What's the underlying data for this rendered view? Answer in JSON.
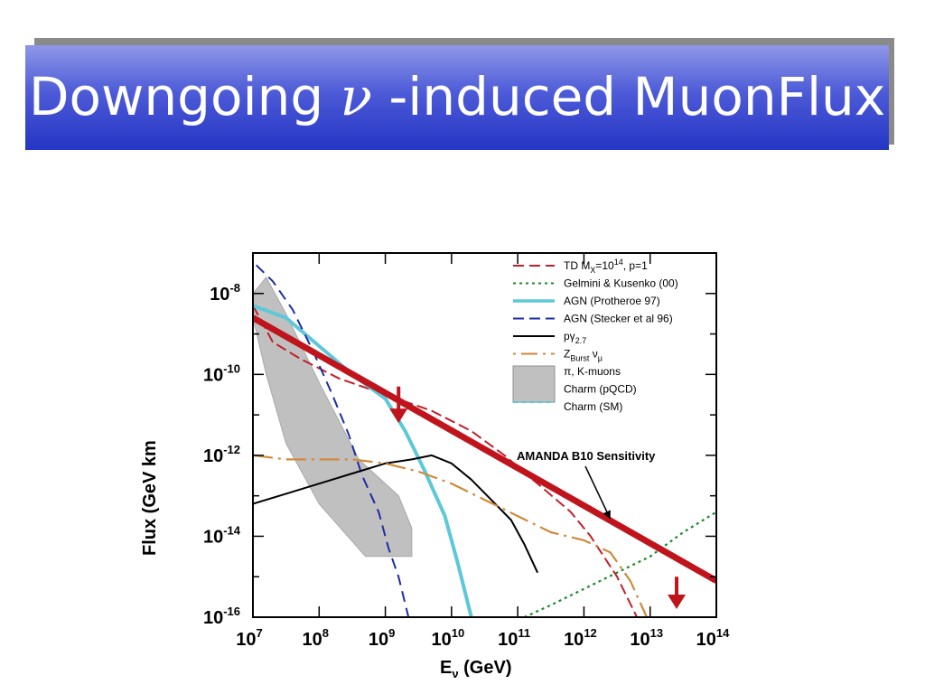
{
  "slide": {
    "title_prefix": "Downgoing ",
    "title_symbol": "ν",
    "title_suffix": " -induced MuonFlux"
  },
  "chart_data": {
    "type": "line",
    "x_scale": "log",
    "y_scale": "log",
    "xlabel_main": "E",
    "xlabel_sub": "ν",
    "xlabel_unit": " (GeV)",
    "ylabel": "Flux (GeV   km",
    "xlim": [
      10000000.0,
      100000000000000.0
    ],
    "ylim": [
      1e-16,
      1e-07
    ],
    "x_ticks": [
      {
        "exp": 7,
        "label_base": "10",
        "label_exp": "7"
      },
      {
        "exp": 8,
        "label_base": "10",
        "label_exp": "8"
      },
      {
        "exp": 9,
        "label_base": "10",
        "label_exp": "9"
      },
      {
        "exp": 10,
        "label_base": "10",
        "label_exp": "10"
      },
      {
        "exp": 11,
        "label_base": "10",
        "label_exp": "11"
      },
      {
        "exp": 12,
        "label_base": "10",
        "label_exp": "12"
      },
      {
        "exp": 13,
        "label_base": "10",
        "label_exp": "13"
      },
      {
        "exp": 14,
        "label_base": "10",
        "label_exp": "14"
      }
    ],
    "y_ticks": [
      {
        "exp": -8,
        "label_base": "10",
        "label_exp": "-8"
      },
      {
        "exp": -10,
        "label_base": "10",
        "label_exp": "-10"
      },
      {
        "exp": -12,
        "label_base": "10",
        "label_exp": "-12"
      },
      {
        "exp": -14,
        "label_base": "10",
        "label_exp": "-14"
      },
      {
        "exp": -16,
        "label_base": "10",
        "label_exp": "-16"
      }
    ],
    "series": [
      {
        "key": "td",
        "color": "#c0202a",
        "dash": "12 5",
        "width": 2,
        "points": [
          [
            7.0,
            -8.3
          ],
          [
            7.3,
            -9.2
          ],
          [
            7.7,
            -9.6
          ],
          [
            8.3,
            -10.1
          ],
          [
            9.0,
            -10.5
          ],
          [
            9.7,
            -10.9
          ],
          [
            10.3,
            -11.4
          ],
          [
            10.8,
            -12.0
          ],
          [
            11.3,
            -12.7
          ],
          [
            11.8,
            -13.4
          ],
          [
            12.1,
            -14.0
          ],
          [
            12.5,
            -15.0
          ],
          [
            12.8,
            -16.0
          ]
        ]
      },
      {
        "key": "gelmini",
        "color": "#1a8a2a",
        "dash": "3 4",
        "width": 2.2,
        "points": [
          [
            11.1,
            -16.0
          ],
          [
            11.5,
            -15.7
          ],
          [
            12.0,
            -15.3
          ],
          [
            12.5,
            -14.9
          ],
          [
            13.0,
            -14.5
          ],
          [
            13.5,
            -13.9
          ],
          [
            14.0,
            -13.4
          ]
        ]
      },
      {
        "key": "agn_protheroe",
        "color": "#5cc8d8",
        "dash": "",
        "width": 4,
        "points": [
          [
            7.0,
            -8.3
          ],
          [
            7.5,
            -8.6
          ],
          [
            8.0,
            -9.3
          ],
          [
            8.5,
            -10.0
          ],
          [
            9.0,
            -10.6
          ],
          [
            9.3,
            -11.4
          ],
          [
            9.6,
            -12.4
          ],
          [
            9.9,
            -13.5
          ],
          [
            10.1,
            -14.7
          ],
          [
            10.3,
            -16.0
          ]
        ]
      },
      {
        "key": "agn_stecker",
        "color": "#1c2ea0",
        "dash": "12 7",
        "width": 2,
        "points": [
          [
            7.05,
            -7.3
          ],
          [
            7.3,
            -7.7
          ],
          [
            7.6,
            -8.4
          ],
          [
            7.9,
            -9.4
          ],
          [
            8.2,
            -10.5
          ],
          [
            8.45,
            -11.5
          ],
          [
            8.65,
            -12.5
          ],
          [
            8.9,
            -13.4
          ],
          [
            9.05,
            -14.3
          ],
          [
            9.2,
            -15.0
          ],
          [
            9.35,
            -16.0
          ]
        ]
      },
      {
        "key": "pgamma",
        "color": "#000000",
        "dash": "",
        "width": 2,
        "points": [
          [
            7.0,
            -13.2
          ],
          [
            7.5,
            -12.95
          ],
          [
            8.0,
            -12.7
          ],
          [
            8.5,
            -12.45
          ],
          [
            9.0,
            -12.2
          ],
          [
            9.4,
            -12.1
          ],
          [
            9.7,
            -12.0
          ],
          [
            10.0,
            -12.2
          ],
          [
            10.3,
            -12.6
          ],
          [
            10.6,
            -13.1
          ],
          [
            10.9,
            -13.6
          ],
          [
            11.1,
            -14.2
          ],
          [
            11.3,
            -14.9
          ]
        ]
      },
      {
        "key": "zburst",
        "color": "#d08a3a",
        "dash": "22 6 3 6",
        "width": 2.2,
        "points": [
          [
            7.0,
            -12.0
          ],
          [
            7.5,
            -12.1
          ],
          [
            8.0,
            -12.1
          ],
          [
            8.5,
            -12.1
          ],
          [
            9.0,
            -12.2
          ],
          [
            9.5,
            -12.4
          ],
          [
            10.0,
            -12.7
          ],
          [
            10.5,
            -13.1
          ],
          [
            11.0,
            -13.5
          ],
          [
            11.5,
            -13.9
          ],
          [
            12.0,
            -14.1
          ],
          [
            12.4,
            -14.4
          ],
          [
            12.7,
            -15.1
          ],
          [
            12.95,
            -16.0
          ]
        ]
      }
    ],
    "shaded": {
      "key": "pi_k_charm",
      "color": "#c0c0c0",
      "points": [
        [
          7.0,
          -8.0
        ],
        [
          7.2,
          -7.6
        ],
        [
          7.5,
          -8.5
        ],
        [
          8.0,
          -10.2
        ],
        [
          8.6,
          -12.1
        ],
        [
          9.2,
          -13.0
        ],
        [
          9.4,
          -13.8
        ],
        [
          9.4,
          -14.5
        ],
        [
          8.7,
          -14.5
        ],
        [
          8.0,
          -13.2
        ],
        [
          7.5,
          -11.7
        ],
        [
          7.2,
          -10.0
        ],
        [
          7.0,
          -8.6
        ]
      ]
    },
    "sensitivity": {
      "color": "#c0141c",
      "start": [
        7.0,
        -8.6
      ],
      "end": [
        14.0,
        -15.1
      ],
      "arrows": [
        [
          9.2,
          -10.3,
          -11.2
        ],
        [
          13.4,
          -15.0,
          -15.8
        ]
      ]
    },
    "legend": [
      {
        "key": "td",
        "text": "TD M",
        "sub": "X",
        "mid": "=10",
        "sup": "14",
        "tail": ",  p=1",
        "color": "#c0202a",
        "style": "dash"
      },
      {
        "key": "gelmini",
        "text": "Gelmini & Kusenko (00)",
        "color": "#1a8a2a",
        "style": "dot"
      },
      {
        "key": "agn_protheroe",
        "text": "AGN (Protheroe 97)",
        "color": "#5cc8d8",
        "style": "solid-thick"
      },
      {
        "key": "agn_stecker",
        "text": "AGN (Stecker et al 96)",
        "color": "#1c2ea0",
        "style": "dash"
      },
      {
        "key": "pgamma",
        "text": "pγ",
        "sub": "2.7",
        "color": "#000000",
        "style": "solid"
      },
      {
        "key": "zburst",
        "text": "Z",
        "sub": "Burst",
        "mid": " ν",
        "sub2": "μ",
        "color": "#d08a3a",
        "style": "dashdot"
      },
      {
        "key": "pi_k",
        "text": "π,  K-muons",
        "style": "box"
      },
      {
        "key": "charm_pqcd",
        "text": "Charm (pQCD)",
        "style": "box"
      },
      {
        "key": "charm_sm",
        "text": "Charm (SM)",
        "style": "box"
      }
    ],
    "annotation": "AMANDA B10 Sensitivity"
  }
}
